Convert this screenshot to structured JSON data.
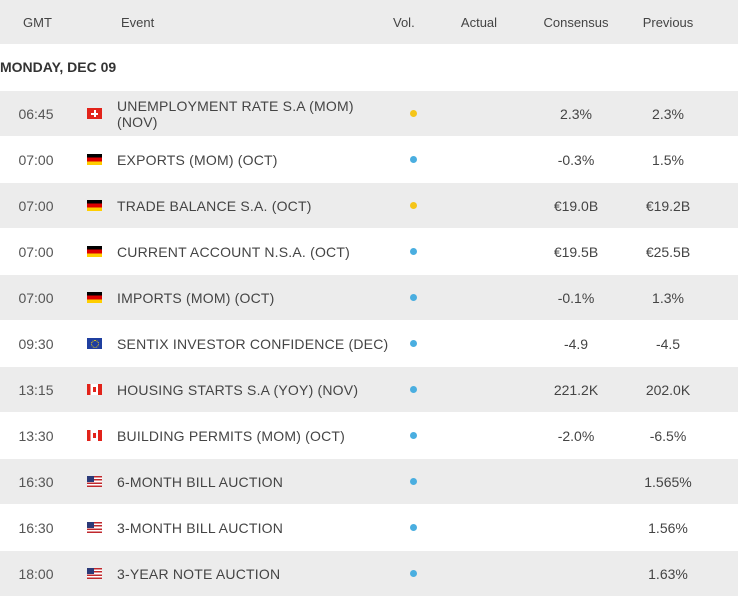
{
  "columns": {
    "time": "GMT",
    "event": "Event",
    "vol": "Vol.",
    "actual": "Actual",
    "consensus": "Consensus",
    "previous": "Previous"
  },
  "day": "MONDAY, DEC 09",
  "colors": {
    "medium_vol": "#f5c518",
    "low_vol": "#4aaee0",
    "row_alt_bg": "#ececec"
  },
  "rows": [
    {
      "time": "06:45",
      "flag": "ch",
      "flag_icon": "switzerland-flag-icon",
      "event": "UNEMPLOYMENT RATE S.A (MOM) (NOV)",
      "vol": "medium",
      "actual": "",
      "consensus": "2.3%",
      "previous": "2.3%"
    },
    {
      "time": "07:00",
      "flag": "de",
      "flag_icon": "germany-flag-icon",
      "event": "EXPORTS (MOM) (OCT)",
      "vol": "low",
      "actual": "",
      "consensus": "-0.3%",
      "previous": "1.5%"
    },
    {
      "time": "07:00",
      "flag": "de",
      "flag_icon": "germany-flag-icon",
      "event": "TRADE BALANCE S.A. (OCT)",
      "vol": "medium",
      "actual": "",
      "consensus": "€19.0B",
      "previous": "€19.2B"
    },
    {
      "time": "07:00",
      "flag": "de",
      "flag_icon": "germany-flag-icon",
      "event": "CURRENT ACCOUNT N.S.A. (OCT)",
      "vol": "low",
      "actual": "",
      "consensus": "€19.5B",
      "previous": "€25.5B"
    },
    {
      "time": "07:00",
      "flag": "de",
      "flag_icon": "germany-flag-icon",
      "event": "IMPORTS (MOM) (OCT)",
      "vol": "low",
      "actual": "",
      "consensus": "-0.1%",
      "previous": "1.3%"
    },
    {
      "time": "09:30",
      "flag": "eu",
      "flag_icon": "eu-flag-icon",
      "event": "SENTIX INVESTOR CONFIDENCE (DEC)",
      "vol": "low",
      "actual": "",
      "consensus": "-4.9",
      "previous": "-4.5"
    },
    {
      "time": "13:15",
      "flag": "ca",
      "flag_icon": "canada-flag-icon",
      "event": "HOUSING STARTS S.A (YOY) (NOV)",
      "vol": "low",
      "actual": "",
      "consensus": "221.2K",
      "previous": "202.0K"
    },
    {
      "time": "13:30",
      "flag": "ca",
      "flag_icon": "canada-flag-icon",
      "event": "BUILDING PERMITS (MOM) (OCT)",
      "vol": "low",
      "actual": "",
      "consensus": "-2.0%",
      "previous": "-6.5%"
    },
    {
      "time": "16:30",
      "flag": "us",
      "flag_icon": "usa-flag-icon",
      "event": "6-MONTH BILL AUCTION",
      "vol": "low",
      "actual": "",
      "consensus": "",
      "previous": "1.565%"
    },
    {
      "time": "16:30",
      "flag": "us",
      "flag_icon": "usa-flag-icon",
      "event": "3-MONTH BILL AUCTION",
      "vol": "low",
      "actual": "",
      "consensus": "",
      "previous": "1.56%"
    },
    {
      "time": "18:00",
      "flag": "us",
      "flag_icon": "usa-flag-icon",
      "event": "3-YEAR NOTE AUCTION",
      "vol": "low",
      "actual": "",
      "consensus": "",
      "previous": "1.63%"
    }
  ]
}
